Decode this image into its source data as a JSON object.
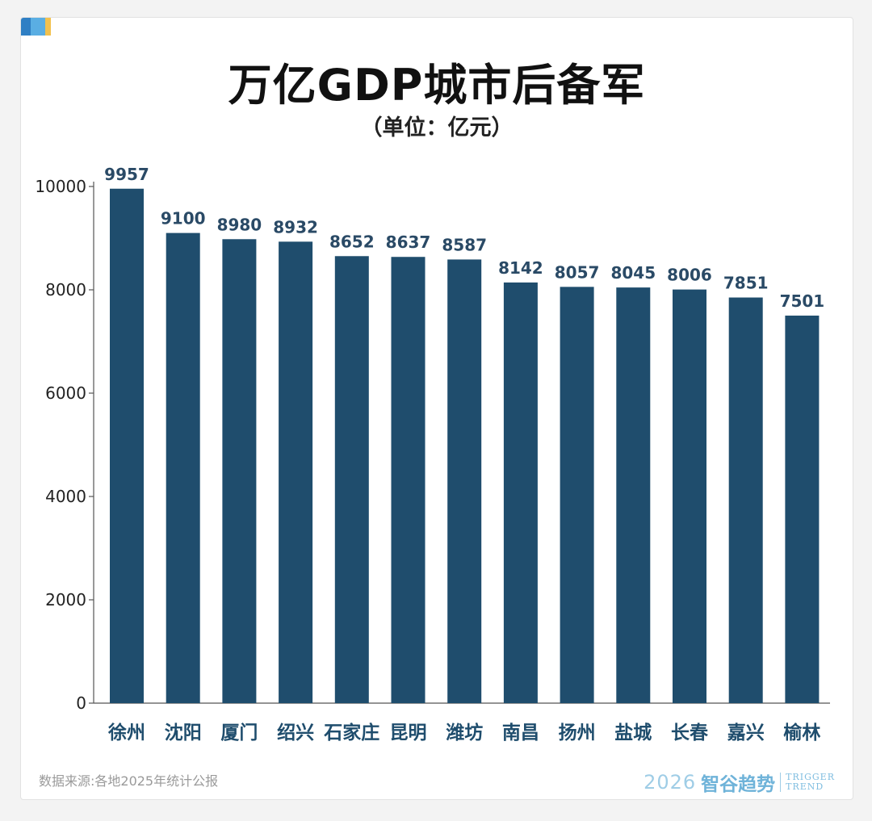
{
  "header": {
    "title": "万亿GDP城市后备军",
    "subtitle": "（单位：亿元）"
  },
  "footer": {
    "source": "数据来源:各地2025年统计公报",
    "brand_year": "2026",
    "brand_name": "智谷趋势",
    "brand_en_line1": "TRIGGER",
    "brand_en_line2": "TREND"
  },
  "colors": {
    "bar": "#1f4d6d",
    "value_label": "#2a4a66",
    "axis": "#555555",
    "corner_mark": [
      "#2f7fc4",
      "#5aaee3",
      "#f2c14e"
    ]
  },
  "chart_data": {
    "type": "bar",
    "categories": [
      "徐州",
      "沈阳",
      "厦门",
      "绍兴",
      "石家庄",
      "昆明",
      "潍坊",
      "南昌",
      "扬州",
      "盐城",
      "长春",
      "嘉兴",
      "榆林"
    ],
    "values": [
      9957,
      9100,
      8980,
      8932,
      8652,
      8637,
      8587,
      8142,
      8057,
      8045,
      8006,
      7851,
      7501
    ],
    "title": "万亿GDP城市后备军",
    "subtitle": "（单位：亿元）",
    "xlabel": "",
    "ylabel": "",
    "ylim": [
      0,
      10000
    ],
    "yticks": [
      0,
      2000,
      4000,
      6000,
      8000,
      10000
    ],
    "grid": false,
    "legend": "none"
  }
}
